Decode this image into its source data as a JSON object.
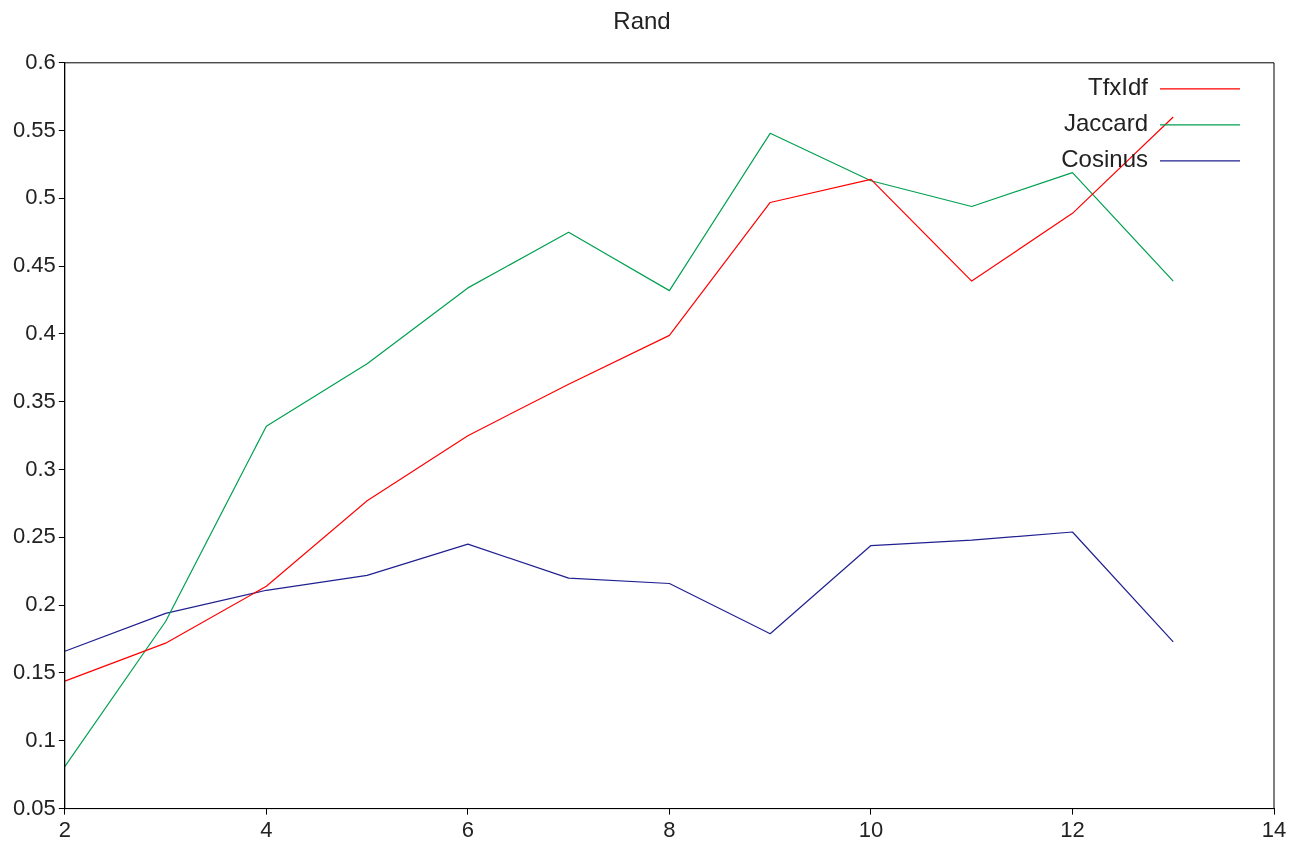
{
  "chart_data": {
    "type": "line",
    "title": "Rand",
    "x": [
      2,
      3,
      4,
      5,
      6,
      7,
      8,
      9,
      10,
      11,
      12,
      13
    ],
    "series": [
      {
        "name": "TfxIdf",
        "color": "#ff0000",
        "values": [
          0.144,
          0.172,
          0.214,
          0.277,
          0.325,
          0.363,
          0.399,
          0.497,
          0.514,
          0.439,
          0.489,
          0.56
        ]
      },
      {
        "name": "Jaccard",
        "color": "#00a050",
        "values": [
          0.081,
          0.188,
          0.332,
          0.378,
          0.434,
          0.475,
          0.432,
          0.548,
          0.513,
          0.494,
          0.519,
          0.439
        ]
      },
      {
        "name": "Cosinus",
        "color": "#202090",
        "values": [
          0.166,
          0.194,
          0.211,
          0.222,
          0.245,
          0.22,
          0.216,
          0.179,
          0.244,
          0.248,
          0.254,
          0.173
        ]
      }
    ],
    "xlim": [
      2,
      14
    ],
    "xticks": [
      2,
      4,
      6,
      8,
      10,
      12,
      14
    ],
    "ylim": [
      0.05,
      0.6
    ],
    "yticks": [
      0.05,
      0.1,
      0.15,
      0.2,
      0.25,
      0.3,
      0.35,
      0.4,
      0.45,
      0.5,
      0.55,
      0.6
    ],
    "grid": false,
    "legend": "top right",
    "marker": "none",
    "line_style": "solid"
  }
}
